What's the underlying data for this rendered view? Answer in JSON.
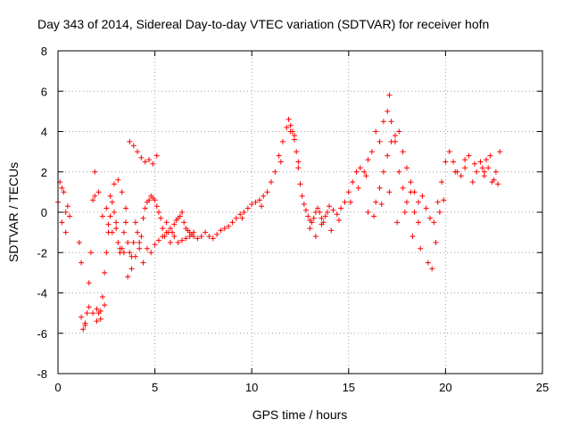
{
  "chart_data": {
    "type": "scatter",
    "title": "Day 343 of 2014, Sidereal Day-to-day VTEC variation (SDTVAR) for receiver hofn",
    "xlabel": "GPS time / hours",
    "ylabel": "SDTVAR / TECUs",
    "xlim": [
      0,
      25
    ],
    "ylim": [
      -8,
      8
    ],
    "xticks": [
      "0",
      "5",
      "10",
      "15",
      "20",
      "25"
    ],
    "yticks": [
      "-8",
      "-6",
      "-4",
      "-2",
      "0",
      "2",
      "4",
      "6",
      "8"
    ],
    "grid": true,
    "marker": "+",
    "colors": {
      "series": "#ff0000",
      "grid": "#a0a0a0",
      "axis": "#000000"
    },
    "series": [
      {
        "name": "SDTVAR",
        "x": [
          0.0,
          0.1,
          0.2,
          0.3,
          0.4,
          0.5,
          0.6,
          1.1,
          1.2,
          1.3,
          1.4,
          1.5,
          1.6,
          1.7,
          1.8,
          1.9,
          2.0,
          2.1,
          2.2,
          2.3,
          2.4,
          2.5,
          2.6,
          2.7,
          2.8,
          2.9,
          3.0,
          3.1,
          3.2,
          3.3,
          3.4,
          3.5,
          3.6,
          3.7,
          3.8,
          3.9,
          4.0,
          4.1,
          4.2,
          4.3,
          4.4,
          4.5,
          4.6,
          4.7,
          4.8,
          4.9,
          5.0,
          5.1,
          5.2,
          5.3,
          5.4,
          5.5,
          5.6,
          5.7,
          5.8,
          5.9,
          6.0,
          6.1,
          6.2,
          6.3,
          6.4,
          6.5,
          6.6,
          6.7,
          6.8,
          6.9,
          7.0,
          7.2,
          7.4,
          7.6,
          7.8,
          8.0,
          8.2,
          8.4,
          8.6,
          8.8,
          9.0,
          9.2,
          9.4,
          9.6,
          9.8,
          10.0,
          10.2,
          10.4,
          10.6,
          10.8,
          11.0,
          11.2,
          11.4,
          11.6,
          11.8,
          11.9,
          12.0,
          12.1,
          12.2,
          12.3,
          12.4,
          12.5,
          12.6,
          12.7,
          12.8,
          12.9,
          13.0,
          13.1,
          13.2,
          13.3,
          13.4,
          13.5,
          13.6,
          13.7,
          13.8,
          13.9,
          14.0,
          14.2,
          14.4,
          14.6,
          14.8,
          15.0,
          15.2,
          15.4,
          15.6,
          15.8,
          16.0,
          16.2,
          16.4,
          16.6,
          16.8,
          17.0,
          17.1,
          17.2,
          17.4,
          17.6,
          17.8,
          18.0,
          18.2,
          18.4,
          18.6,
          18.8,
          19.0,
          19.2,
          19.4,
          19.6,
          19.8,
          20.0,
          20.2,
          20.4,
          20.6,
          20.8,
          21.0,
          21.2,
          21.4,
          21.6,
          21.8,
          22.0,
          22.2,
          22.4,
          22.6,
          22.8,
          1.2,
          1.4,
          1.6,
          1.8,
          2.0,
          2.2,
          2.4,
          1.9,
          2.1,
          2.3,
          2.6,
          2.8,
          3.0,
          3.2,
          3.4,
          3.6,
          3.8,
          4.0,
          4.2,
          4.4,
          4.6,
          4.8,
          5.0,
          5.2,
          5.4,
          5.6,
          5.8,
          6.0,
          6.2,
          6.4,
          6.6,
          6.8,
          7.0,
          0.2,
          0.4,
          3.7,
          3.9,
          4.1,
          4.3,
          4.5,
          4.7,
          4.9,
          5.1,
          16.4,
          16.6,
          16.8,
          17.0,
          17.2,
          17.4,
          17.6,
          17.8,
          18.0,
          18.2,
          18.4,
          18.6,
          16.0,
          16.3,
          16.7,
          17.1,
          17.5,
          17.9,
          18.3,
          18.7,
          19.1,
          19.3,
          19.5,
          19.7,
          19.9,
          20.5,
          21.0,
          21.5,
          22.0,
          22.5,
          22.7,
          12.0,
          12.2,
          12.4,
          13.0,
          13.3,
          13.6,
          14.1,
          14.5,
          15.1,
          15.5,
          15.9,
          2.5,
          2.7,
          2.9,
          3.1,
          3.3,
          3.5,
          9.5,
          10.5,
          11.5,
          21.9,
          22.1,
          22.3
        ],
        "y": [
          0.5,
          1.5,
          -0.5,
          1.0,
          0.0,
          0.3,
          -0.2,
          -1.5,
          -2.5,
          -5.8,
          -5.5,
          -5.0,
          -3.5,
          -2.0,
          0.6,
          0.8,
          -4.8,
          -5.0,
          -5.3,
          -4.2,
          -3.0,
          -2.0,
          -1.0,
          -0.2,
          0.5,
          0.0,
          -0.8,
          -1.5,
          -2.0,
          -1.8,
          -1.0,
          -0.5,
          -1.5,
          -2.0,
          -2.2,
          -1.5,
          -0.5,
          -1.0,
          -1.8,
          -1.2,
          -0.3,
          0.2,
          0.5,
          0.6,
          0.8,
          0.7,
          0.6,
          0.3,
          0.0,
          -0.3,
          -0.8,
          -1.2,
          -0.5,
          -1.0,
          -1.5,
          -1.0,
          -0.6,
          -0.4,
          -0.3,
          -0.2,
          0.0,
          -0.5,
          -0.8,
          -0.9,
          -1.0,
          -1.1,
          -1.2,
          -1.3,
          -1.2,
          -1.0,
          -1.2,
          -1.3,
          -1.1,
          -0.9,
          -0.8,
          -0.7,
          -0.5,
          -0.3,
          -0.1,
          0.0,
          0.2,
          0.4,
          0.5,
          0.6,
          0.8,
          1.0,
          1.5,
          2.0,
          2.8,
          3.5,
          4.2,
          4.6,
          4.3,
          4.0,
          3.6,
          3.0,
          2.2,
          1.4,
          0.8,
          0.4,
          0.1,
          -0.2,
          -0.4,
          -0.5,
          -0.3,
          0.0,
          0.2,
          0.0,
          -0.3,
          -0.5,
          -0.2,
          0.0,
          0.3,
          0.1,
          -0.1,
          0.2,
          0.5,
          1.0,
          1.5,
          2.0,
          2.2,
          2.0,
          2.6,
          3.0,
          4.0,
          3.5,
          4.5,
          5.0,
          5.8,
          4.5,
          3.5,
          2.0,
          1.2,
          0.5,
          1.0,
          0.0,
          -0.5,
          0.8,
          0.2,
          -0.3,
          -0.5,
          0.5,
          1.5,
          2.5,
          3.0,
          2.5,
          2.0,
          1.8,
          2.2,
          2.8,
          1.5,
          2.0,
          2.5,
          1.8,
          2.2,
          1.5,
          2.0,
          3.0,
          -5.2,
          -5.6,
          -4.7,
          -5.0,
          -5.4,
          -4.9,
          -4.6,
          2.0,
          1.0,
          -0.2,
          -0.6,
          -1.0,
          -0.5,
          -1.8,
          -2.0,
          -3.2,
          -2.8,
          -2.2,
          -1.5,
          -2.5,
          -1.8,
          -2.0,
          -1.6,
          -1.4,
          -1.2,
          -1.0,
          -0.8,
          -1.2,
          -1.5,
          -1.4,
          -1.3,
          -1.2,
          -1.0,
          1.2,
          -1.0,
          3.5,
          3.3,
          3.0,
          2.7,
          2.5,
          2.6,
          2.4,
          2.8,
          0.5,
          1.2,
          2.0,
          2.8,
          3.5,
          3.8,
          4.0,
          3.0,
          2.2,
          1.5,
          1.0,
          0.5,
          0.0,
          -0.2,
          0.4,
          1.0,
          -0.5,
          0.0,
          -1.2,
          -1.8,
          -2.5,
          -2.8,
          -1.5,
          0.0,
          0.6,
          2.0,
          2.6,
          2.4,
          2.0,
          1.6,
          1.4,
          4.0,
          3.8,
          2.5,
          -0.8,
          -1.2,
          -0.6,
          -0.9,
          -0.4,
          0.5,
          1.2,
          1.8,
          0.2,
          0.8,
          1.4,
          1.6,
          1.0,
          0.2,
          -0.3,
          0.3,
          2.5,
          2.2,
          2.6,
          2.8
        ]
      }
    ]
  }
}
